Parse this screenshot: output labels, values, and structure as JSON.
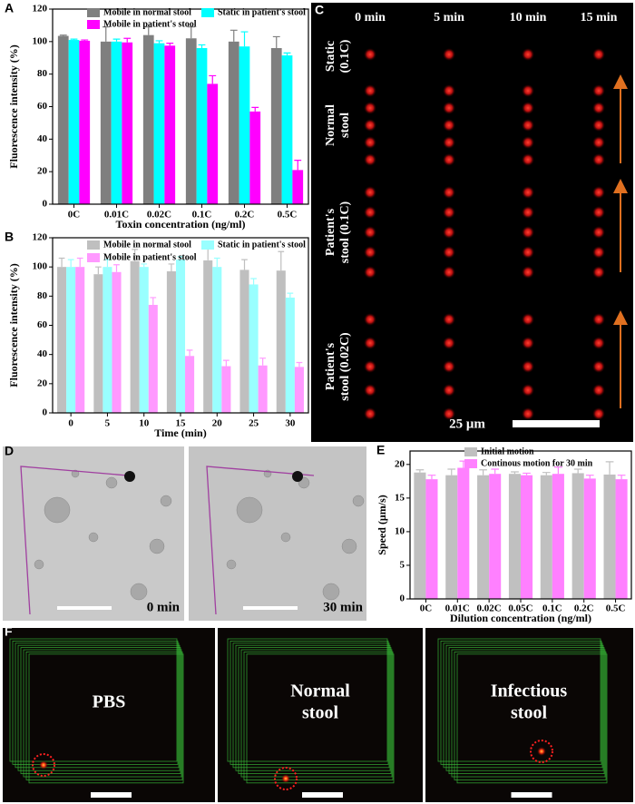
{
  "labels": [
    "A",
    "B",
    "C",
    "D",
    "E",
    "F"
  ],
  "chart_data": [
    {
      "type": "bar",
      "ylabel": "Fluorescence intensity (%)",
      "xlabel": "Toxin concentration (ng/ml)",
      "categories": [
        "0C",
        "0.01C",
        "0.02C",
        "0.1C",
        "0.2C",
        "0.5C"
      ],
      "ylim": [
        0,
        120
      ],
      "yticks": [
        0,
        20,
        40,
        60,
        80,
        100,
        120
      ],
      "series": [
        {
          "name": "Mobile in normal stool",
          "color": "#7f7f7f",
          "values": [
            103.5,
            100,
            104,
            102,
            100,
            96
          ],
          "errors": [
            0.5,
            9,
            5,
            7,
            7,
            7
          ]
        },
        {
          "name": "Static in patient's stool",
          "color": "#00ffff",
          "values": [
            101,
            100,
            99,
            96,
            97,
            91.5
          ],
          "errors": [
            0.5,
            1.5,
            1.5,
            2,
            9,
            1.5
          ]
        },
        {
          "name": "Mobile in patient's stool",
          "color": "#ff00ff",
          "values": [
            100.5,
            99.5,
            97.5,
            74,
            57,
            21
          ],
          "errors": [
            0.5,
            2.5,
            1.5,
            5,
            2.5,
            6
          ]
        }
      ]
    },
    {
      "type": "bar",
      "ylabel": "Fluorescence intensity (%)",
      "xlabel": "Time (min)",
      "categories": [
        "0",
        "5",
        "10",
        "15",
        "20",
        "25",
        "30"
      ],
      "ylim": [
        0,
        120
      ],
      "yticks": [
        0,
        20,
        40,
        60,
        80,
        100,
        120
      ],
      "series": [
        {
          "name": "Mobile in normal stool",
          "color": "#bfbfbf",
          "values": [
            100,
            95,
            104,
            97,
            104.5,
            98,
            97.5
          ],
          "errors": [
            6,
            5,
            8,
            5,
            12,
            7,
            13
          ]
        },
        {
          "name": "Static in patient's stool",
          "color": "#99ffff",
          "values": [
            100,
            100,
            100,
            105,
            100,
            88,
            79
          ],
          "errors": [
            5,
            5,
            2,
            2,
            6,
            4,
            3
          ]
        },
        {
          "name": "Mobile in patient's stool",
          "color": "#ff99ff",
          "values": [
            100,
            96.5,
            74,
            39,
            32,
            32.5,
            31.5
          ],
          "errors": [
            6,
            5,
            5,
            4,
            4,
            5,
            3
          ]
        }
      ]
    },
    {
      "type": "bar",
      "ylabel": "Speed (μm/s)",
      "xlabel": "Dilution concentration (ng/ml)",
      "categories": [
        "0C",
        "0.01C",
        "0.02C",
        "0.05C",
        "0.1C",
        "0.2C",
        "0.5C"
      ],
      "ylim": [
        0,
        22
      ],
      "yticks": [
        0,
        5,
        10,
        15,
        20
      ],
      "series": [
        {
          "name": "Initial motion",
          "color": "#c0c0c0",
          "values": [
            18.8,
            18.4,
            18.4,
            18.6,
            18.4,
            18.7,
            18.5
          ],
          "errors": [
            0.4,
            0.9,
            0.8,
            0.3,
            0.4,
            0.6,
            1.9
          ]
        },
        {
          "name": "Continous motion for 30 min",
          "color": "#ff80ff",
          "values": [
            17.8,
            19.5,
            18.6,
            18.4,
            18.6,
            17.9,
            17.8
          ],
          "errors": [
            0.6,
            1.0,
            0.7,
            0.3,
            1.0,
            0.5,
            0.6
          ]
        }
      ]
    }
  ],
  "panel_c": {
    "columns": [
      "0 min",
      "5 min",
      "10 min",
      "15 min"
    ],
    "rows": [
      [
        "Static",
        "(0.1C)"
      ],
      [
        "Normal",
        "stool"
      ],
      [
        "Patient's",
        "stool (0.1C)"
      ],
      [
        "Patient's",
        "stool (0.02C)"
      ]
    ],
    "scale": "25 μm"
  },
  "panel_d": {
    "times": [
      "0 min",
      "30 min"
    ]
  },
  "panel_f": {
    "labels": [
      [
        "PBS"
      ],
      [
        "Normal",
        "stool"
      ],
      [
        "Infectious",
        "stool"
      ]
    ]
  }
}
